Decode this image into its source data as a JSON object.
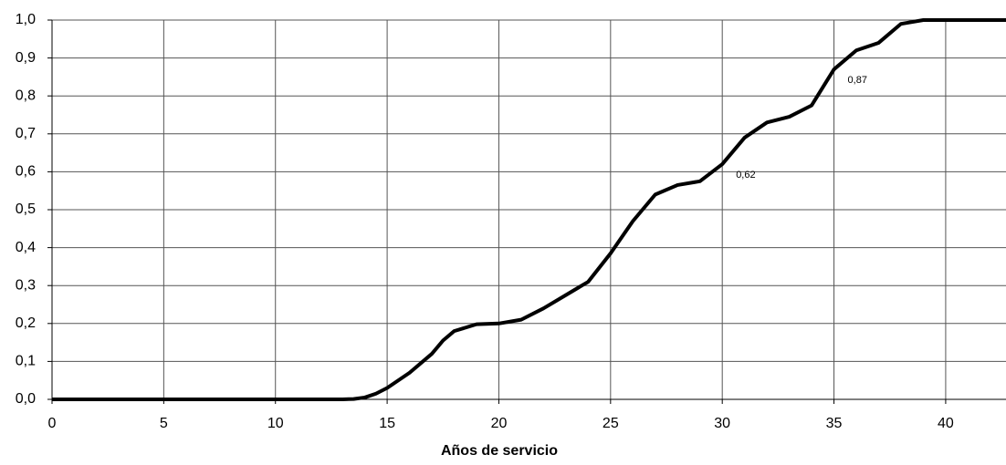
{
  "chart_data": {
    "type": "line",
    "x_label": "Años de servicio",
    "x": [
      0,
      1,
      2,
      3,
      4,
      5,
      6,
      7,
      8,
      9,
      10,
      11,
      12,
      13,
      13.5,
      14,
      14.5,
      15,
      16,
      17,
      17.5,
      18,
      19,
      20,
      21,
      22,
      23,
      24,
      25,
      26,
      27,
      28,
      29,
      30,
      31,
      32,
      33,
      34,
      35,
      36,
      37,
      38,
      39,
      40,
      41,
      42,
      42.7
    ],
    "series": [
      {
        "color": "#000000",
        "values": [
          0,
          0,
          0,
          0,
          0,
          0,
          0,
          0,
          0,
          0,
          0,
          0,
          0,
          0,
          0.001,
          0.005,
          0.015,
          0.03,
          0.07,
          0.12,
          0.155,
          0.18,
          0.198,
          0.2,
          0.21,
          0.24,
          0.275,
          0.31,
          0.385,
          0.47,
          0.54,
          0.565,
          0.575,
          0.62,
          0.69,
          0.73,
          0.745,
          0.775,
          0.87,
          0.92,
          0.94,
          0.99,
          1.0,
          1.0,
          1.0,
          1.0,
          1.0
        ]
      }
    ],
    "annotations": [
      {
        "x": 30,
        "value": 0.62,
        "label": "0,62"
      },
      {
        "x": 35,
        "value": 0.87,
        "label": "0,87"
      }
    ],
    "xlim": [
      0,
      42.7
    ],
    "ylim": [
      0,
      1
    ],
    "xticks": [
      0,
      5,
      10,
      15,
      20,
      25,
      30,
      35,
      40
    ],
    "yticks": [
      {
        "value": 0,
        "label": "0,0"
      },
      {
        "value": 0.1,
        "label": "0,1"
      },
      {
        "value": 0.2,
        "label": "0,2"
      },
      {
        "value": 0.3,
        "label": "0,3"
      },
      {
        "value": 0.4,
        "label": "0,4"
      },
      {
        "value": 0.5,
        "label": "0,5"
      },
      {
        "value": 0.6,
        "label": "0,6"
      },
      {
        "value": 0.7,
        "label": "0,7"
      },
      {
        "value": 0.8,
        "label": "0,8"
      },
      {
        "value": 0.9,
        "label": "0,9"
      },
      {
        "value": 1,
        "label": "1,0"
      }
    ],
    "grid": true
  }
}
